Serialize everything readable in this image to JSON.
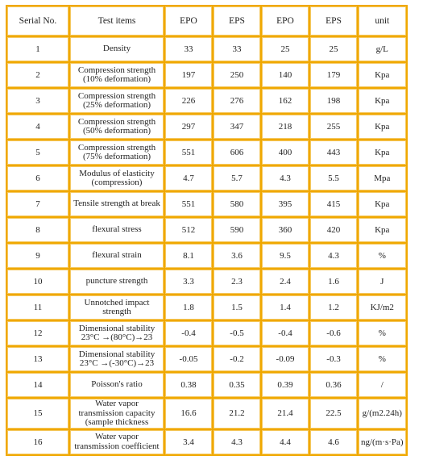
{
  "table": {
    "headers": [
      "Serial No.",
      "Test items",
      "EPO",
      "EPS",
      "EPO",
      "EPS",
      "unit"
    ],
    "rows": [
      {
        "serial": "1",
        "item": "Density",
        "v1": "33",
        "v2": "33",
        "v3": "25",
        "v4": "25",
        "unit": "g/L"
      },
      {
        "serial": "2",
        "item": "Compression strength (10% deformation)",
        "v1": "197",
        "v2": "250",
        "v3": "140",
        "v4": "179",
        "unit": "Kpa"
      },
      {
        "serial": "3",
        "item": "Compression strength (25% deformation)",
        "v1": "226",
        "v2": "276",
        "v3": "162",
        "v4": "198",
        "unit": "Kpa"
      },
      {
        "serial": "4",
        "item": "Compression strength (50% deformation)",
        "v1": "297",
        "v2": "347",
        "v3": "218",
        "v4": "255",
        "unit": "Kpa"
      },
      {
        "serial": "5",
        "item": "Compression strength (75% deformation)",
        "v1": "551",
        "v2": "606",
        "v3": "400",
        "v4": "443",
        "unit": "Kpa"
      },
      {
        "serial": "6",
        "item": "Modulus of elasticity (compression)",
        "v1": "4.7",
        "v2": "5.7",
        "v3": "4.3",
        "v4": "5.5",
        "unit": "Mpa"
      },
      {
        "serial": "7",
        "item": "Tensile strength at break",
        "v1": "551",
        "v2": "580",
        "v3": "395",
        "v4": "415",
        "unit": "Kpa"
      },
      {
        "serial": "8",
        "item": "flexural stress",
        "v1": "512",
        "v2": "590",
        "v3": "360",
        "v4": "420",
        "unit": "Kpa"
      },
      {
        "serial": "9",
        "item": "flexural strain",
        "v1": "8.1",
        "v2": "3.6",
        "v3": "9.5",
        "v4": "4.3",
        "unit": "%"
      },
      {
        "serial": "10",
        "item": "puncture strength",
        "v1": "3.3",
        "v2": "2.3",
        "v3": "2.4",
        "v4": "1.6",
        "unit": "J"
      },
      {
        "serial": "11",
        "item": "Unnotched impact strength",
        "v1": "1.8",
        "v2": "1.5",
        "v3": "1.4",
        "v4": "1.2",
        "unit": "KJ/m2"
      },
      {
        "serial": "12",
        "item": "Dimensional stability 23°C →(80°C)→23",
        "v1": "-0.4",
        "v2": "-0.5",
        "v3": "-0.4",
        "v4": "-0.6",
        "unit": "%"
      },
      {
        "serial": "13",
        "item": "Dimensional stability 23°C →(-30°C)→23",
        "v1": "-0.05",
        "v2": "-0.2",
        "v3": "-0.09",
        "v4": "-0.3",
        "unit": "%"
      },
      {
        "serial": "14",
        "item": "Poisson's ratio",
        "v1": "0.38",
        "v2": "0.35",
        "v3": "0.39",
        "v4": "0.36",
        "unit": "/"
      },
      {
        "serial": "15",
        "item": "Water vapor transmission capacity (sample thickness",
        "v1": "16.6",
        "v2": "21.2",
        "v3": "21.4",
        "v4": "22.5",
        "unit": "g/(m2.24h)"
      },
      {
        "serial": "16",
        "item": "Water vapor transmission coefficient",
        "v1": "3.4",
        "v2": "4.3",
        "v3": "4.4",
        "v4": "4.6",
        "unit": "ng/(m·s·Pa)"
      }
    ]
  },
  "colors": {
    "border": "#f0a800",
    "cell_background": "#ffffff",
    "text": "#222222"
  }
}
